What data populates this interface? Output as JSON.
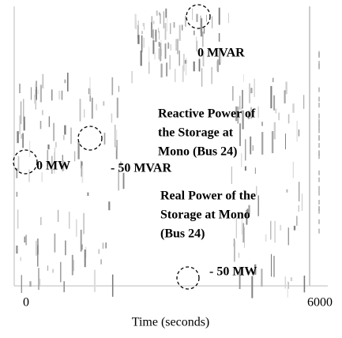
{
  "chart_data": {
    "type": "line",
    "xlabel": "Time (seconds)",
    "xlim": [
      0,
      6000
    ],
    "xticks": [
      0,
      6000
    ],
    "annotations": [
      {
        "lines": [
          "0 MVAR"
        ]
      },
      {
        "lines": [
          "Reactive Power of",
          "the Storage at",
          "Mono (Bus 24)"
        ]
      },
      {
        "lines": [
          "0 MW"
        ]
      },
      {
        "lines": [
          "- 50 MVAR"
        ]
      },
      {
        "lines": [
          "Real Power of the",
          "Storage at Mono",
          "(Bus 24)"
        ]
      },
      {
        "lines": [
          "- 50 MW"
        ]
      }
    ]
  }
}
